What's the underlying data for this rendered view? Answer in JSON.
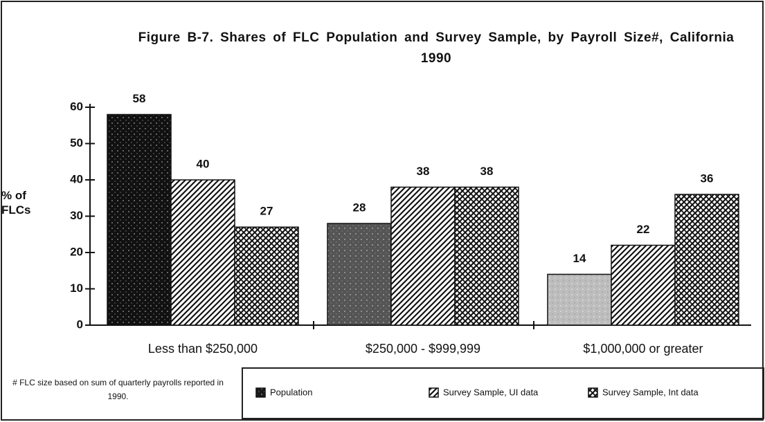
{
  "chart_data": {
    "type": "bar",
    "title": "Figure B-7. Shares of FLC Population and Survey Sample, by Payroll Size#,    California 1990",
    "ylabel": "% of FLCs",
    "footnote": "# FLC size based on sum of quarterly payrolls reported in 1990.",
    "categories": [
      "Less than $250,000",
      "$250,000 - $999,999",
      "$1,000,000 or greater"
    ],
    "series": [
      {
        "name": "Population",
        "color": "#1a1a1a",
        "colors": [
          "#111111",
          "#555555",
          "#bdbdbd"
        ],
        "pattern": "stipple",
        "values": [
          58,
          28,
          14
        ]
      },
      {
        "name": "Survey Sample, UI data",
        "color": "#111111",
        "pattern": "hatch",
        "values": [
          40,
          38,
          22
        ]
      },
      {
        "name": "Survey Sample, Int data",
        "color": "#111111",
        "pattern": "crosshatch",
        "values": [
          27,
          38,
          36
        ]
      }
    ],
    "ylim": [
      0,
      60
    ],
    "yticks": [
      0,
      10,
      20,
      30,
      40,
      50,
      60
    ],
    "grid": false
  }
}
